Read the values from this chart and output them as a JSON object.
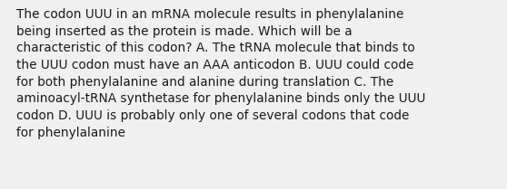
{
  "text_lines": [
    "The codon UUU in an mRNA molecule results in phenylalanine",
    "being inserted as the protein is made. Which will be a",
    "characteristic of this codon? A. The tRNA molecule that binds to",
    "the UUU codon must have an AAA anticodon B. UUU could code",
    "for both phenylalanine and alanine during translation C. The",
    "aminoacyl-tRNA synthetase for phenylalanine binds only the UUU",
    "codon D. UUU is probably only one of several codons that code",
    "for phenylalanine"
  ],
  "background_color": "#f0f0f0",
  "text_color": "#1a1a1a",
  "font_size": 9.8,
  "fig_width": 5.58,
  "fig_height": 2.09,
  "dpi": 100
}
